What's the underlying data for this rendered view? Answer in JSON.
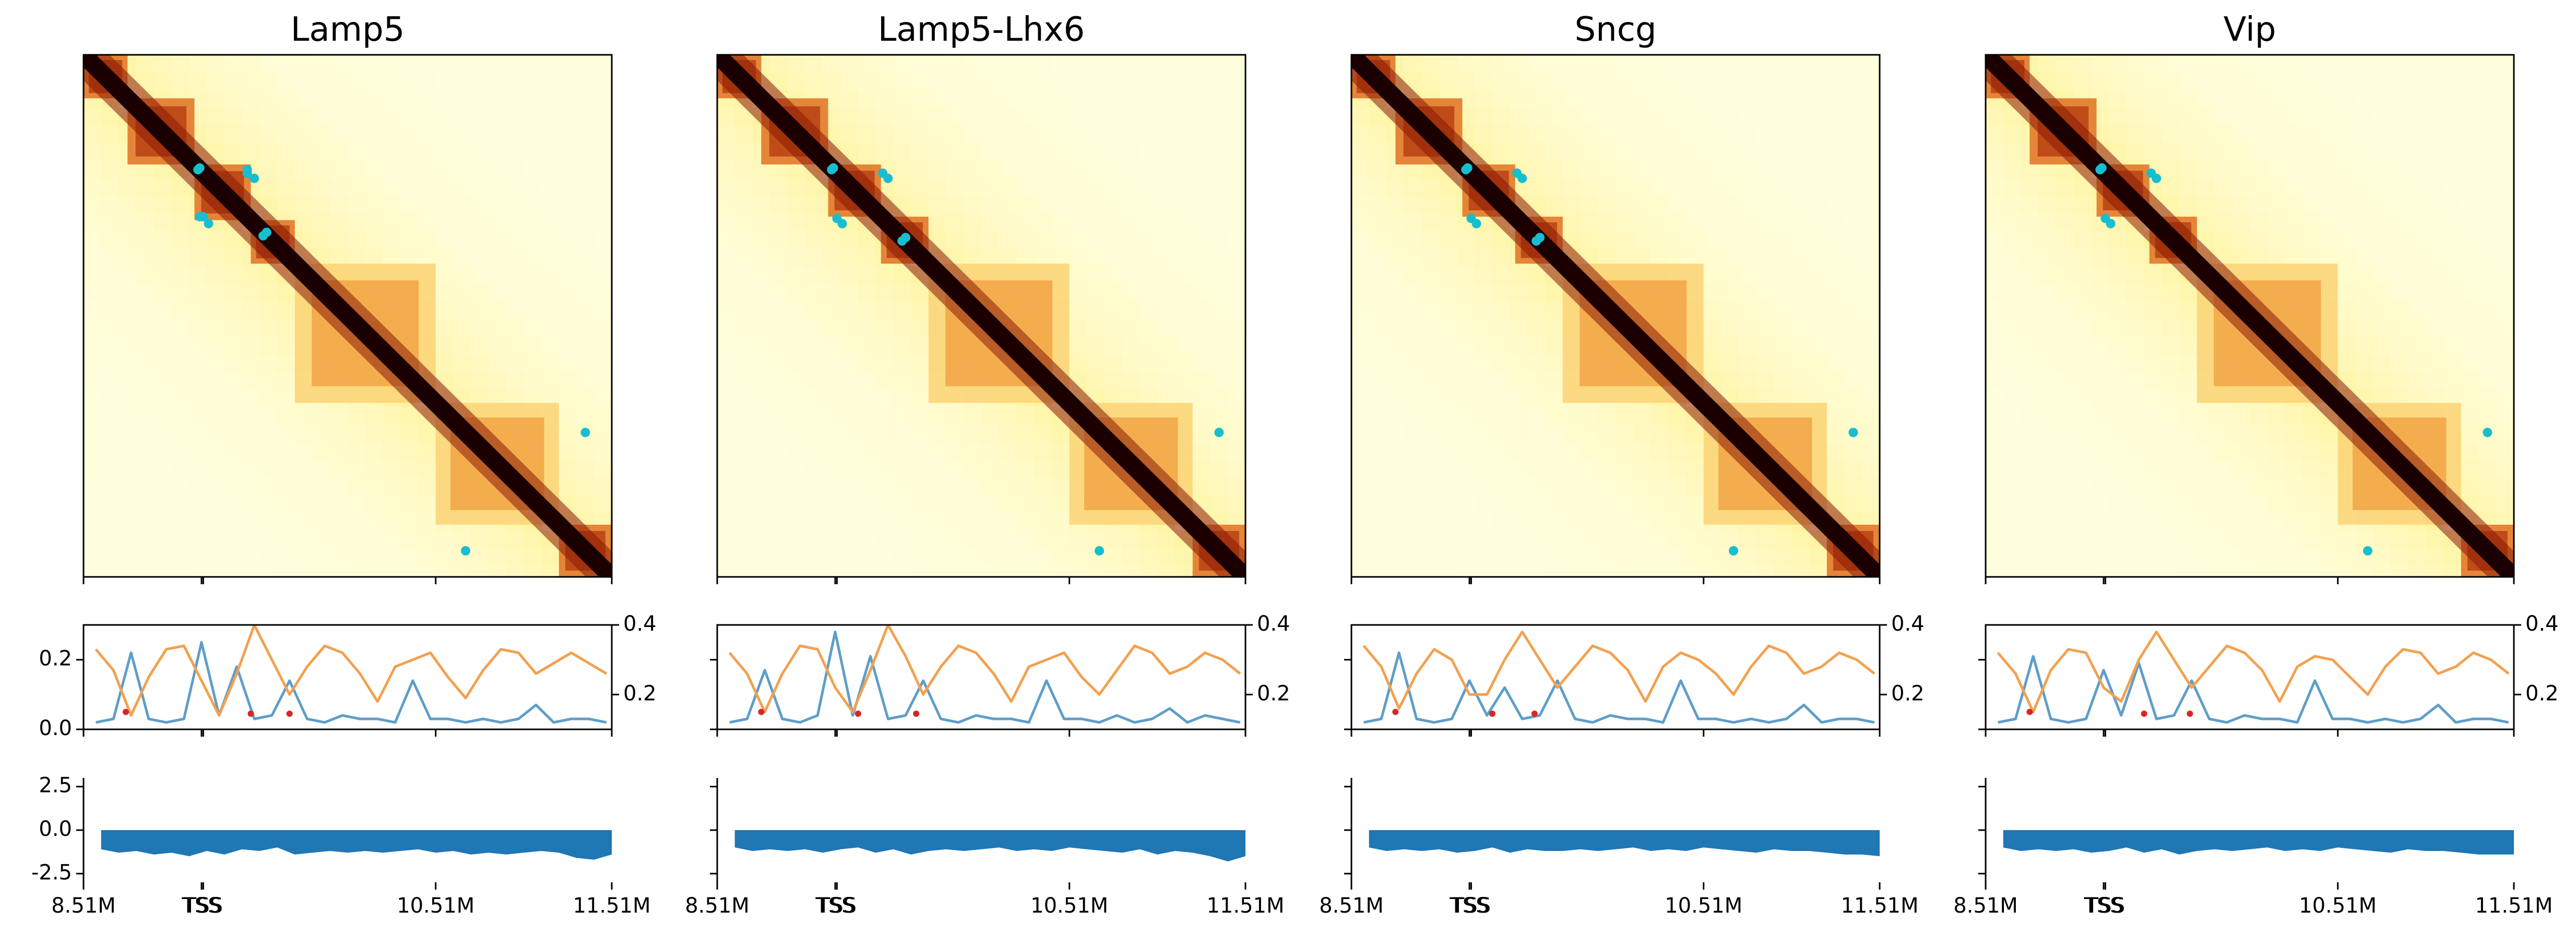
{
  "figure": {
    "x_tick_labels": [
      "8.51M",
      "TSS",
      "TSS",
      "10.51M",
      "11.51M"
    ],
    "x_tick_values_mb": [
      8.51,
      9.18,
      9.19,
      10.51,
      11.51
    ],
    "heatmap_colormap": [
      "#ffffe0",
      "#fff3a0",
      "#f7b54a",
      "#d95a16",
      "#8b1a06",
      "#1a0000"
    ],
    "loop_color": "#17becf",
    "colors": {
      "insulation": "#5f9ec8",
      "directionality": "#f2a14f",
      "minima": "#d62728",
      "compartment": "#1f77b4"
    }
  },
  "panels": [
    {
      "title": "Lamp5"
    },
    {
      "title": "Lamp5-Lhx6"
    },
    {
      "title": "Sncg"
    },
    {
      "title": "Vip"
    }
  ],
  "chart_data": [
    {
      "type": "heatmap",
      "title": "Lamp5",
      "x_range_mb": [
        8.51,
        11.51
      ],
      "domains_mb": [
        [
          8.51,
          8.76
        ],
        [
          8.76,
          9.14
        ],
        [
          9.14,
          9.46
        ],
        [
          9.46,
          9.71
        ],
        [
          9.71,
          10.51
        ],
        [
          10.51,
          11.21
        ],
        [
          11.21,
          11.51
        ]
      ],
      "loops": [
        [
          9.16,
          9.17
        ],
        [
          9.19,
          9.44
        ],
        [
          9.22,
          9.48
        ],
        [
          9.17,
          9.44
        ],
        [
          9.53,
          9.55
        ],
        [
          10.68,
          11.36
        ]
      ],
      "track_signal": {
        "type": "line",
        "left_ylim": [
          0,
          0.3
        ],
        "left_yticks": [
          0.0,
          0.2
        ],
        "right_ylim": [
          0.1,
          0.4
        ],
        "right_yticks": [
          0.2,
          0.4
        ],
        "x_mb": [
          8.58,
          8.68,
          8.78,
          8.88,
          8.98,
          9.08,
          9.18,
          9.28,
          9.38,
          9.48,
          9.58,
          9.68,
          9.78,
          9.88,
          9.98,
          10.08,
          10.18,
          10.28,
          10.38,
          10.48,
          10.58,
          10.68,
          10.78,
          10.88,
          10.98,
          11.08,
          11.18,
          11.28,
          11.38,
          11.48
        ],
        "series": [
          {
            "axis": "left",
            "values": [
              0.02,
              0.03,
              0.22,
              0.03,
              0.02,
              0.03,
              0.25,
              0.04,
              0.18,
              0.03,
              0.04,
              0.14,
              0.03,
              0.02,
              0.04,
              0.03,
              0.03,
              0.02,
              0.14,
              0.03,
              0.03,
              0.02,
              0.03,
              0.02,
              0.03,
              0.07,
              0.02,
              0.03,
              0.03,
              0.02
            ]
          },
          {
            "axis": "right",
            "values": [
              0.33,
              0.27,
              0.14,
              0.25,
              0.33,
              0.34,
              0.24,
              0.14,
              0.26,
              0.4,
              0.3,
              0.2,
              0.28,
              0.34,
              0.32,
              0.26,
              0.18,
              0.28,
              0.3,
              0.32,
              0.25,
              0.19,
              0.27,
              0.33,
              0.32,
              0.26,
              0.29,
              0.32,
              0.29,
              0.26
            ]
          }
        ],
        "minima_x_mb": [
          8.75,
          9.46,
          9.68
        ],
        "minima_y": [
          0.05,
          0.045,
          0.045
        ]
      },
      "track_compartment": {
        "type": "area",
        "ylim": [
          -3,
          3
        ],
        "yticks": [
          -2.5,
          0.0,
          2.5
        ],
        "x_mb": [
          8.61,
          8.71,
          8.81,
          8.91,
          9.01,
          9.11,
          9.21,
          9.31,
          9.41,
          9.51,
          9.61,
          9.71,
          9.81,
          9.91,
          10.01,
          10.11,
          10.21,
          10.31,
          10.41,
          10.51,
          10.61,
          10.71,
          10.81,
          10.91,
          11.01,
          11.11,
          11.21,
          11.31,
          11.41,
          11.51
        ],
        "values": [
          -1.1,
          -1.3,
          -1.2,
          -1.4,
          -1.3,
          -1.5,
          -1.2,
          -1.4,
          -1.1,
          -1.2,
          -1.0,
          -1.4,
          -1.3,
          -1.2,
          -1.3,
          -1.2,
          -1.3,
          -1.2,
          -1.1,
          -1.3,
          -1.2,
          -1.4,
          -1.3,
          -1.4,
          -1.3,
          -1.2,
          -1.3,
          -1.6,
          -1.7,
          -1.4
        ]
      }
    },
    {
      "type": "heatmap",
      "title": "Lamp5-Lhx6",
      "x_range_mb": [
        8.51,
        11.51
      ],
      "domains_mb": [
        [
          8.51,
          8.76
        ],
        [
          8.76,
          9.14
        ],
        [
          9.14,
          9.44
        ],
        [
          9.44,
          9.71
        ],
        [
          9.71,
          10.51
        ],
        [
          10.51,
          11.21
        ],
        [
          11.21,
          11.51
        ]
      ],
      "loops": [
        [
          9.16,
          9.17
        ],
        [
          9.19,
          9.45
        ],
        [
          9.22,
          9.48
        ],
        [
          9.56,
          9.58
        ],
        [
          10.68,
          11.36
        ]
      ],
      "track_signal": {
        "type": "line",
        "left_ylim": [
          0,
          0.3
        ],
        "left_yticks": [
          0.0,
          0.2
        ],
        "right_ylim": [
          0.1,
          0.4
        ],
        "right_yticks": [
          0.2,
          0.4
        ],
        "x_mb": [
          8.58,
          8.68,
          8.78,
          8.88,
          8.98,
          9.08,
          9.18,
          9.28,
          9.38,
          9.48,
          9.58,
          9.68,
          9.78,
          9.88,
          9.98,
          10.08,
          10.18,
          10.28,
          10.38,
          10.48,
          10.58,
          10.68,
          10.78,
          10.88,
          10.98,
          11.08,
          11.18,
          11.28,
          11.38,
          11.48
        ],
        "series": [
          {
            "axis": "left",
            "values": [
              0.02,
              0.03,
              0.17,
              0.03,
              0.02,
              0.04,
              0.28,
              0.04,
              0.21,
              0.03,
              0.04,
              0.14,
              0.03,
              0.02,
              0.04,
              0.03,
              0.03,
              0.02,
              0.14,
              0.03,
              0.03,
              0.02,
              0.04,
              0.02,
              0.03,
              0.06,
              0.02,
              0.04,
              0.03,
              0.02
            ]
          },
          {
            "axis": "right",
            "values": [
              0.32,
              0.26,
              0.15,
              0.26,
              0.34,
              0.33,
              0.22,
              0.15,
              0.27,
              0.4,
              0.31,
              0.2,
              0.28,
              0.34,
              0.32,
              0.26,
              0.18,
              0.28,
              0.3,
              0.32,
              0.25,
              0.2,
              0.27,
              0.34,
              0.32,
              0.26,
              0.28,
              0.32,
              0.3,
              0.26
            ]
          }
        ],
        "minima_x_mb": [
          8.76,
          9.31,
          9.64
        ],
        "minima_y": [
          0.05,
          0.045,
          0.045
        ]
      },
      "track_compartment": {
        "type": "area",
        "ylim": [
          -3,
          3
        ],
        "yticks": [
          -2.5,
          0.0,
          2.5
        ],
        "x_mb": [
          8.61,
          8.71,
          8.81,
          8.91,
          9.01,
          9.11,
          9.21,
          9.31,
          9.41,
          9.51,
          9.61,
          9.71,
          9.81,
          9.91,
          10.01,
          10.11,
          10.21,
          10.31,
          10.41,
          10.51,
          10.61,
          10.71,
          10.81,
          10.91,
          11.01,
          11.11,
          11.21,
          11.31,
          11.41,
          11.51
        ],
        "values": [
          -1.0,
          -1.2,
          -1.1,
          -1.2,
          -1.1,
          -1.3,
          -1.1,
          -1.0,
          -1.3,
          -1.1,
          -1.4,
          -1.2,
          -1.1,
          -1.2,
          -1.1,
          -1.0,
          -1.2,
          -1.1,
          -1.2,
          -1.0,
          -1.1,
          -1.2,
          -1.3,
          -1.1,
          -1.4,
          -1.2,
          -1.3,
          -1.5,
          -1.8,
          -1.5
        ]
      }
    },
    {
      "type": "heatmap",
      "title": "Sncg",
      "x_range_mb": [
        8.51,
        11.51
      ],
      "domains_mb": [
        [
          8.51,
          8.76
        ],
        [
          8.76,
          9.14
        ],
        [
          9.14,
          9.44
        ],
        [
          9.44,
          9.71
        ],
        [
          9.71,
          10.51
        ],
        [
          10.51,
          11.21
        ],
        [
          11.21,
          11.51
        ]
      ],
      "loops": [
        [
          9.16,
          9.17
        ],
        [
          9.19,
          9.45
        ],
        [
          9.22,
          9.48
        ],
        [
          9.56,
          9.58
        ],
        [
          10.68,
          11.36
        ]
      ],
      "track_signal": {
        "type": "line",
        "left_ylim": [
          0,
          0.3
        ],
        "left_yticks": [
          0.0,
          0.2
        ],
        "right_ylim": [
          0.1,
          0.4
        ],
        "right_yticks": [
          0.2,
          0.4
        ],
        "x_mb": [
          8.58,
          8.68,
          8.78,
          8.88,
          8.98,
          9.08,
          9.18,
          9.28,
          9.38,
          9.48,
          9.58,
          9.68,
          9.78,
          9.88,
          9.98,
          10.08,
          10.18,
          10.28,
          10.38,
          10.48,
          10.58,
          10.68,
          10.78,
          10.88,
          10.98,
          11.08,
          11.18,
          11.28,
          11.38,
          11.48
        ],
        "series": [
          {
            "axis": "left",
            "values": [
              0.02,
              0.03,
              0.22,
              0.03,
              0.02,
              0.03,
              0.14,
              0.04,
              0.12,
              0.03,
              0.04,
              0.14,
              0.03,
              0.02,
              0.04,
              0.03,
              0.03,
              0.02,
              0.14,
              0.03,
              0.03,
              0.02,
              0.03,
              0.02,
              0.03,
              0.07,
              0.02,
              0.03,
              0.03,
              0.02
            ]
          },
          {
            "axis": "right",
            "values": [
              0.34,
              0.28,
              0.16,
              0.26,
              0.33,
              0.3,
              0.2,
              0.2,
              0.3,
              0.38,
              0.3,
              0.22,
              0.28,
              0.34,
              0.32,
              0.27,
              0.18,
              0.28,
              0.32,
              0.3,
              0.26,
              0.2,
              0.28,
              0.34,
              0.32,
              0.26,
              0.28,
              0.32,
              0.3,
              0.26
            ]
          }
        ],
        "minima_x_mb": [
          8.76,
          9.31,
          9.55
        ],
        "minima_y": [
          0.05,
          0.045,
          0.045
        ]
      },
      "track_compartment": {
        "type": "area",
        "ylim": [
          -3,
          3
        ],
        "yticks": [
          -2.5,
          0.0,
          2.5
        ],
        "x_mb": [
          8.61,
          8.71,
          8.81,
          8.91,
          9.01,
          9.11,
          9.21,
          9.31,
          9.41,
          9.51,
          9.61,
          9.71,
          9.81,
          9.91,
          10.01,
          10.11,
          10.21,
          10.31,
          10.41,
          10.51,
          10.61,
          10.71,
          10.81,
          10.91,
          11.01,
          11.11,
          11.21,
          11.31,
          11.41,
          11.51
        ],
        "values": [
          -1.0,
          -1.2,
          -1.1,
          -1.2,
          -1.1,
          -1.3,
          -1.2,
          -1.0,
          -1.3,
          -1.1,
          -1.2,
          -1.2,
          -1.1,
          -1.2,
          -1.1,
          -1.0,
          -1.2,
          -1.1,
          -1.2,
          -1.0,
          -1.1,
          -1.2,
          -1.3,
          -1.1,
          -1.2,
          -1.2,
          -1.3,
          -1.4,
          -1.4,
          -1.5
        ]
      }
    },
    {
      "type": "heatmap",
      "title": "Vip",
      "x_range_mb": [
        8.51,
        11.51
      ],
      "domains_mb": [
        [
          8.51,
          8.76
        ],
        [
          8.76,
          9.14
        ],
        [
          9.14,
          9.44
        ],
        [
          9.44,
          9.71
        ],
        [
          9.71,
          10.51
        ],
        [
          10.51,
          11.21
        ],
        [
          11.21,
          11.51
        ]
      ],
      "loops": [
        [
          9.16,
          9.17
        ],
        [
          9.19,
          9.45
        ],
        [
          9.22,
          9.48
        ],
        [
          10.68,
          11.36
        ]
      ],
      "track_signal": {
        "type": "line",
        "left_ylim": [
          0,
          0.3
        ],
        "left_yticks": [
          0.0,
          0.2
        ],
        "right_ylim": [
          0.1,
          0.4
        ],
        "right_yticks": [
          0.2,
          0.4
        ],
        "x_mb": [
          8.58,
          8.68,
          8.78,
          8.88,
          8.98,
          9.08,
          9.18,
          9.28,
          9.38,
          9.48,
          9.58,
          9.68,
          9.78,
          9.88,
          9.98,
          10.08,
          10.18,
          10.28,
          10.38,
          10.48,
          10.58,
          10.68,
          10.78,
          10.88,
          10.98,
          11.08,
          11.18,
          11.28,
          11.38,
          11.48
        ],
        "series": [
          {
            "axis": "left",
            "values": [
              0.02,
              0.03,
              0.21,
              0.03,
              0.02,
              0.03,
              0.17,
              0.04,
              0.19,
              0.03,
              0.04,
              0.14,
              0.03,
              0.02,
              0.04,
              0.03,
              0.03,
              0.02,
              0.14,
              0.03,
              0.03,
              0.02,
              0.03,
              0.02,
              0.03,
              0.07,
              0.02,
              0.03,
              0.03,
              0.02
            ]
          },
          {
            "axis": "right",
            "values": [
              0.32,
              0.26,
              0.15,
              0.27,
              0.33,
              0.32,
              0.22,
              0.18,
              0.3,
              0.38,
              0.3,
              0.22,
              0.28,
              0.34,
              0.32,
              0.27,
              0.18,
              0.28,
              0.31,
              0.3,
              0.25,
              0.2,
              0.28,
              0.33,
              0.32,
              0.26,
              0.28,
              0.32,
              0.3,
              0.26
            ]
          }
        ],
        "minima_x_mb": [
          8.76,
          9.41,
          9.67
        ],
        "minima_y": [
          0.05,
          0.045,
          0.045
        ]
      },
      "track_compartment": {
        "type": "area",
        "ylim": [
          -3,
          3
        ],
        "yticks": [
          -2.5,
          0.0,
          2.5
        ],
        "x_mb": [
          8.61,
          8.71,
          8.81,
          8.91,
          9.01,
          9.11,
          9.21,
          9.31,
          9.41,
          9.51,
          9.61,
          9.71,
          9.81,
          9.91,
          10.01,
          10.11,
          10.21,
          10.31,
          10.41,
          10.51,
          10.61,
          10.71,
          10.81,
          10.91,
          11.01,
          11.11,
          11.21,
          11.31,
          11.41,
          11.51
        ],
        "values": [
          -1.0,
          -1.2,
          -1.1,
          -1.2,
          -1.1,
          -1.3,
          -1.2,
          -1.0,
          -1.3,
          -1.1,
          -1.4,
          -1.2,
          -1.1,
          -1.2,
          -1.1,
          -1.0,
          -1.2,
          -1.1,
          -1.2,
          -1.0,
          -1.1,
          -1.2,
          -1.3,
          -1.1,
          -1.2,
          -1.2,
          -1.3,
          -1.4,
          -1.4,
          -1.4
        ]
      }
    }
  ]
}
